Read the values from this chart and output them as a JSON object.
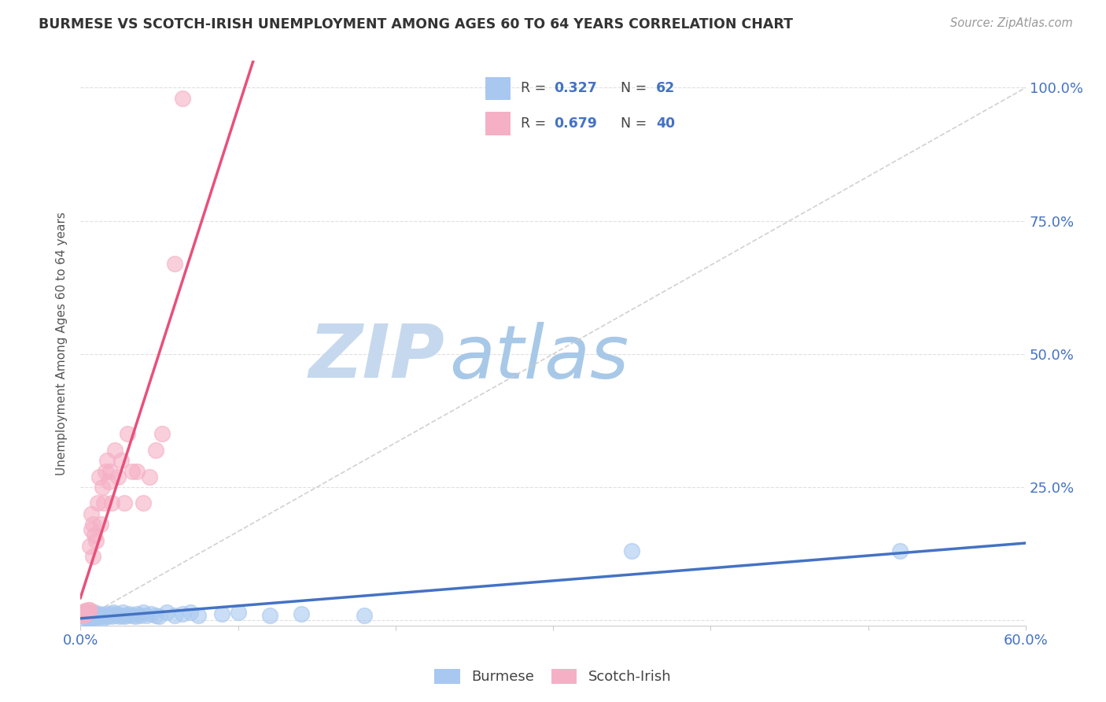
{
  "title": "BURMESE VS SCOTCH-IRISH UNEMPLOYMENT AMONG AGES 60 TO 64 YEARS CORRELATION CHART",
  "source": "Source: ZipAtlas.com",
  "ylabel": "Unemployment Among Ages 60 to 64 years",
  "xlim": [
    0.0,
    0.6
  ],
  "ylim": [
    -0.01,
    1.05
  ],
  "xticks": [
    0.0,
    0.1,
    0.2,
    0.3,
    0.4,
    0.5,
    0.6
  ],
  "xticklabels": [
    "0.0%",
    "",
    "",
    "",
    "",
    "",
    "60.0%"
  ],
  "yticks": [
    0.0,
    0.25,
    0.5,
    0.75,
    1.0
  ],
  "yticklabels_right": [
    "",
    "25.0%",
    "50.0%",
    "75.0%",
    "100.0%"
  ],
  "burmese_R": 0.327,
  "burmese_N": 62,
  "scotch_irish_R": 0.679,
  "scotch_irish_N": 40,
  "burmese_color": "#a8c8f0",
  "scotch_irish_color": "#f5b0c5",
  "burmese_line_color": "#4472c4",
  "scotch_irish_line_color": "#e8507a",
  "ref_line_color": "#cccccc",
  "watermark_zip_color": "#c5d8ee",
  "watermark_atlas_color": "#a8c8e8",
  "title_color": "#333333",
  "axis_color": "#4472c4",
  "burmese_x": [
    0.001,
    0.002,
    0.002,
    0.003,
    0.003,
    0.004,
    0.004,
    0.005,
    0.005,
    0.005,
    0.006,
    0.006,
    0.007,
    0.007,
    0.008,
    0.008,
    0.009,
    0.009,
    0.01,
    0.01,
    0.011,
    0.012,
    0.012,
    0.013,
    0.014,
    0.015,
    0.015,
    0.016,
    0.017,
    0.018,
    0.019,
    0.02,
    0.021,
    0.022,
    0.023,
    0.025,
    0.026,
    0.027,
    0.028,
    0.03,
    0.031,
    0.033,
    0.035,
    0.036,
    0.038,
    0.04,
    0.042,
    0.045,
    0.048,
    0.05,
    0.055,
    0.06,
    0.065,
    0.07,
    0.075,
    0.09,
    0.1,
    0.12,
    0.14,
    0.18,
    0.35,
    0.52
  ],
  "burmese_y": [
    0.01,
    0.005,
    0.012,
    0.008,
    0.015,
    0.005,
    0.01,
    0.007,
    0.01,
    0.012,
    0.005,
    0.01,
    0.008,
    0.012,
    0.005,
    0.01,
    0.008,
    0.015,
    0.005,
    0.01,
    0.01,
    0.008,
    0.012,
    0.01,
    0.008,
    0.005,
    0.01,
    0.012,
    0.008,
    0.01,
    0.012,
    0.008,
    0.015,
    0.01,
    0.012,
    0.008,
    0.01,
    0.015,
    0.008,
    0.01,
    0.012,
    0.01,
    0.008,
    0.012,
    0.01,
    0.015,
    0.01,
    0.012,
    0.01,
    0.008,
    0.015,
    0.01,
    0.012,
    0.015,
    0.01,
    0.012,
    0.015,
    0.01,
    0.012,
    0.01,
    0.13,
    0.13
  ],
  "scotch_irish_x": [
    0.001,
    0.001,
    0.002,
    0.002,
    0.003,
    0.003,
    0.004,
    0.005,
    0.005,
    0.006,
    0.006,
    0.007,
    0.007,
    0.008,
    0.008,
    0.009,
    0.01,
    0.011,
    0.012,
    0.013,
    0.014,
    0.015,
    0.016,
    0.017,
    0.018,
    0.019,
    0.02,
    0.022,
    0.024,
    0.026,
    0.028,
    0.03,
    0.033,
    0.036,
    0.04,
    0.044,
    0.048,
    0.052,
    0.06,
    0.065
  ],
  "scotch_irish_y": [
    0.01,
    0.015,
    0.01,
    0.015,
    0.012,
    0.018,
    0.015,
    0.015,
    0.02,
    0.02,
    0.14,
    0.17,
    0.2,
    0.12,
    0.18,
    0.16,
    0.15,
    0.22,
    0.27,
    0.18,
    0.25,
    0.22,
    0.28,
    0.3,
    0.26,
    0.28,
    0.22,
    0.32,
    0.27,
    0.3,
    0.22,
    0.35,
    0.28,
    0.28,
    0.22,
    0.27,
    0.32,
    0.35,
    0.67,
    0.98
  ]
}
